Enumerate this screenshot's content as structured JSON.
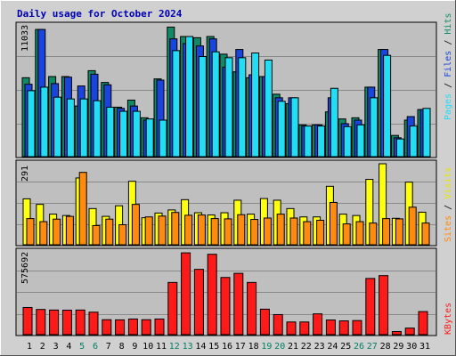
{
  "title": "Daily usage for October 2024",
  "colors": {
    "pages": "#118866",
    "files": "#1a45dd",
    "hits": "#22ddf4",
    "sites": "#ff8a10",
    "visits": "#ffff10",
    "kbytes": "#ff1a1a",
    "weekend_label": "#008060",
    "weekday_label": "#000000"
  },
  "chart_data": [
    {
      "type": "bar",
      "panel": "hits",
      "ymax_label": "11033",
      "ylim": [
        0,
        11033
      ],
      "legend": [
        "Pages",
        "/",
        "Files",
        "/",
        "Hits"
      ],
      "categories": [
        "1",
        "2",
        "3",
        "4",
        "5",
        "6",
        "7",
        "8",
        "9",
        "10",
        "11",
        "12",
        "13",
        "14",
        "15",
        "16",
        "17",
        "18",
        "19",
        "20",
        "21",
        "22",
        "23",
        "24",
        "25",
        "26",
        "27",
        "28",
        "29",
        "30",
        "31"
      ],
      "weekend_days": [
        "5",
        "6",
        "12",
        "13",
        "19",
        "20",
        "26",
        "27"
      ],
      "series": [
        {
          "name": "Pages",
          "values": [
            6700,
            10800,
            6800,
            6800,
            4300,
            7300,
            6300,
            4200,
            4800,
            3300,
            6600,
            11000,
            10200,
            10100,
            10200,
            8700,
            7200,
            6700,
            6800,
            5300,
            4500,
            2700,
            2700,
            3800,
            3200,
            3300,
            5900,
            9100,
            1800,
            3100,
            4000
          ]
        },
        {
          "name": "Files",
          "values": [
            6150,
            10800,
            6200,
            6750,
            6000,
            7000,
            6100,
            4100,
            4300,
            3100,
            6500,
            10000,
            9600,
            9400,
            10000,
            7600,
            9100,
            6950,
            6800,
            5000,
            5000,
            2600,
            2700,
            5000,
            2800,
            3100,
            5900,
            9100,
            1600,
            3400,
            4000
          ]
        },
        {
          "name": "Hits",
          "values": [
            5600,
            5900,
            5050,
            4900,
            4900,
            4750,
            4200,
            3850,
            3850,
            3200,
            3100,
            9000,
            10200,
            8500,
            8900,
            8400,
            8400,
            8800,
            8200,
            4700,
            5000,
            2600,
            2600,
            5800,
            2550,
            2700,
            5000,
            8600,
            1500,
            2600,
            4100
          ]
        }
      ]
    },
    {
      "type": "bar",
      "panel": "visits",
      "ymax_label": "291",
      "ylim": [
        0,
        291
      ],
      "legend": [
        "Sites",
        "/",
        "Visits"
      ],
      "categories": [
        "1",
        "2",
        "3",
        "4",
        "5",
        "6",
        "7",
        "8",
        "9",
        "10",
        "11",
        "12",
        "13",
        "14",
        "15",
        "16",
        "17",
        "18",
        "19",
        "20",
        "21",
        "22",
        "23",
        "24",
        "25",
        "26",
        "27",
        "28",
        "29",
        "30",
        "31"
      ],
      "series": [
        {
          "name": "Visits",
          "values": [
            165,
            145,
            110,
            105,
            240,
            130,
            102,
            140,
            228,
            97,
            114,
            125,
            162,
            115,
            107,
            115,
            160,
            110,
            166,
            160,
            130,
            100,
            100,
            210,
            110,
            105,
            235,
            291,
            95,
            225,
            117
          ]
        },
        {
          "name": "Sites",
          "values": [
            94,
            83,
            92,
            102,
            260,
            69,
            92,
            72,
            145,
            100,
            103,
            116,
            106,
            107,
            94,
            93,
            108,
            91,
            96,
            110,
            96,
            83,
            88,
            152,
            75,
            83,
            78,
            94,
            93,
            135,
            78
          ]
        }
      ]
    },
    {
      "type": "bar",
      "panel": "kbytes",
      "ymax_label": "575692",
      "ylim": [
        0,
        575692
      ],
      "legend": [
        "KBytes"
      ],
      "categories": [
        "1",
        "2",
        "3",
        "4",
        "5",
        "6",
        "7",
        "8",
        "9",
        "10",
        "11",
        "12",
        "13",
        "14",
        "15",
        "16",
        "17",
        "18",
        "19",
        "20",
        "21",
        "22",
        "23",
        "24",
        "25",
        "26",
        "27",
        "28",
        "29",
        "30",
        "31"
      ],
      "series": [
        {
          "name": "KBytes",
          "values": [
            191000,
            177000,
            173000,
            172000,
            173000,
            158000,
            105000,
            104000,
            110000,
            105000,
            110000,
            367000,
            575000,
            459000,
            565000,
            402000,
            431000,
            367000,
            179000,
            141000,
            89000,
            89000,
            146000,
            103000,
            97000,
            99000,
            395000,
            415000,
            22000,
            46000,
            162000
          ]
        }
      ]
    }
  ]
}
